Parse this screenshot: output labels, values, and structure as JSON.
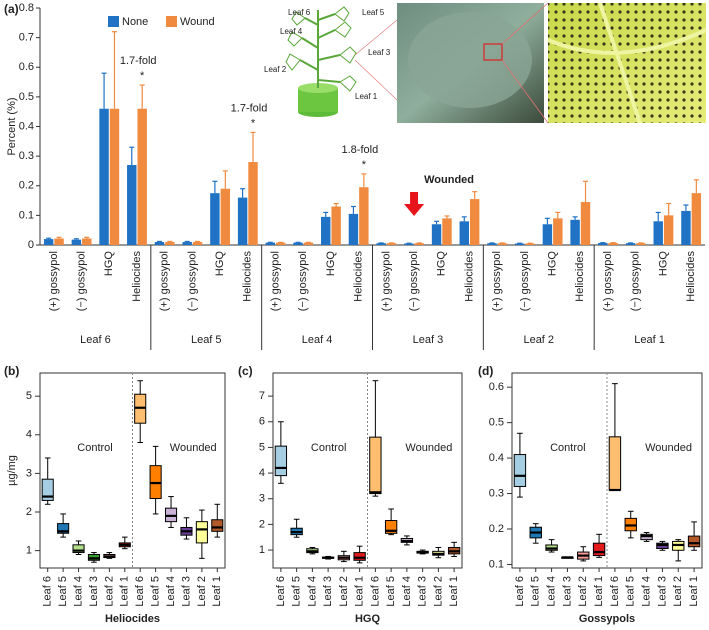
{
  "panel_labels": [
    "(a)",
    "(b)",
    "(c)",
    "(d)"
  ],
  "diagram": {
    "leaf_labels": [
      "Leaf 6",
      "Leaf 5",
      "Leaf 4",
      "Leaf 3",
      "Leaf 2",
      "Leaf 1"
    ]
  },
  "chart_data": [
    {
      "type": "bar",
      "ylabel": "Percent (%)",
      "categories": [
        "(+) gossypol",
        "(−) gossypol",
        "HGQ",
        "Heliocides",
        "(+) gossypol",
        "(−) gossypol",
        "HGQ",
        "Heliocides",
        "(+) gossypol",
        "(−) gossypol",
        "HGQ",
        "Heliocides",
        "(+) gossypol",
        "(−) gossypol",
        "HGQ",
        "Heliocides",
        "(+) gossypol",
        "(−) gossypol",
        "HGQ",
        "Heliocides",
        "(+) gossypol",
        "(−) gossypol",
        "HGQ",
        "Heliocides"
      ],
      "groups": [
        "Leaf 6",
        "Leaf 5",
        "Leaf 4",
        "Leaf 3",
        "Leaf 2",
        "Leaf 1"
      ],
      "series": [
        {
          "name": "None",
          "color": "#1f72c4",
          "values": [
            0.02,
            0.018,
            0.46,
            0.27,
            0.01,
            0.01,
            0.175,
            0.16,
            0.008,
            0.008,
            0.095,
            0.105,
            0.006,
            0.005,
            0.07,
            0.08,
            0.006,
            0.005,
            0.07,
            0.085,
            0.007,
            0.006,
            0.08,
            0.115
          ],
          "errors": [
            0.003,
            0.003,
            0.12,
            0.06,
            0.002,
            0.002,
            0.04,
            0.03,
            0.001,
            0.001,
            0.015,
            0.025,
            0.001,
            0.001,
            0.01,
            0.015,
            0.001,
            0.001,
            0.02,
            0.01,
            0.001,
            0.001,
            0.03,
            0.02
          ]
        },
        {
          "name": "Wound",
          "color": "#ef8a3f",
          "values": [
            0.022,
            0.022,
            0.46,
            0.46,
            0.01,
            0.01,
            0.19,
            0.28,
            0.008,
            0.008,
            0.13,
            0.195,
            0.006,
            0.006,
            0.09,
            0.155,
            0.006,
            0.005,
            0.09,
            0.145,
            0.007,
            0.006,
            0.1,
            0.175
          ],
          "errors": [
            0.004,
            0.004,
            0.26,
            0.08,
            0.002,
            0.002,
            0.06,
            0.1,
            0.001,
            0.001,
            0.01,
            0.045,
            0.001,
            0.001,
            0.008,
            0.025,
            0.001,
            0.001,
            0.02,
            0.07,
            0.001,
            0.001,
            0.04,
            0.045
          ]
        }
      ],
      "ylim": [
        0,
        0.8
      ],
      "yticks": [
        0,
        0.1,
        0.2,
        0.3,
        0.4,
        0.5,
        0.6,
        0.7,
        0.8
      ],
      "annotations": [
        "1.7-fold",
        "1.7-fold",
        "1.8-fold"
      ],
      "significance": "*",
      "wounded_label": "Wounded"
    },
    {
      "type": "boxplot",
      "xlabel": "Heliocides",
      "ylabel": "µg/mg",
      "categories": [
        "Leaf 6",
        "Leaf 5",
        "Leaf 4",
        "Leaf 3",
        "Leaf 2",
        "Leaf 1",
        "Leaf 6",
        "Leaf 5",
        "Leaf 4",
        "Leaf 3",
        "Leaf 2",
        "Leaf 1"
      ],
      "groups": [
        "Control",
        "Wounded"
      ],
      "colors": [
        "#a6cee3",
        "#1f78b4",
        "#b2df8a",
        "#33a02c",
        "#fb9a99",
        "#e31a1c",
        "#fdbf6f",
        "#ff7f00",
        "#cab2d6",
        "#6a3d9a",
        "#ffff99",
        "#b15928"
      ],
      "boxes": [
        {
          "min": 2.2,
          "q1": 2.3,
          "median": 2.4,
          "q3": 2.85,
          "max": 3.4
        },
        {
          "min": 1.35,
          "q1": 1.45,
          "median": 1.5,
          "q3": 1.7,
          "max": 1.95
        },
        {
          "min": 0.9,
          "q1": 0.95,
          "median": 1.0,
          "q3": 1.15,
          "max": 1.25
        },
        {
          "min": 0.7,
          "q1": 0.75,
          "median": 0.8,
          "q3": 0.9,
          "max": 0.95
        },
        {
          "min": 0.8,
          "q1": 0.82,
          "median": 0.85,
          "q3": 0.9,
          "max": 0.95
        },
        {
          "min": 1.05,
          "q1": 1.1,
          "median": 1.15,
          "q3": 1.2,
          "max": 1.35
        },
        {
          "min": 3.8,
          "q1": 4.3,
          "median": 4.7,
          "q3": 5.05,
          "max": 5.4
        },
        {
          "min": 1.95,
          "q1": 2.35,
          "median": 2.75,
          "q3": 3.2,
          "max": 3.7
        },
        {
          "min": 1.6,
          "q1": 1.75,
          "median": 1.9,
          "q3": 2.1,
          "max": 2.4
        },
        {
          "min": 1.3,
          "q1": 1.4,
          "median": 1.5,
          "q3": 1.6,
          "max": 1.85
        },
        {
          "min": 0.8,
          "q1": 1.2,
          "median": 1.55,
          "q3": 1.75,
          "max": 2.05
        },
        {
          "min": 1.35,
          "q1": 1.5,
          "median": 1.6,
          "q3": 1.8,
          "max": 2.2
        }
      ],
      "ylim": [
        0.55,
        5.6
      ],
      "yticks": [
        1,
        2,
        3,
        4,
        5
      ]
    },
    {
      "type": "boxplot",
      "xlabel": "HGQ",
      "categories": [
        "Leaf 6",
        "Leaf 5",
        "Leaf 4",
        "Leaf 3",
        "Leaf 2",
        "Leaf 1",
        "Leaf 6",
        "Leaf 5",
        "Leaf 4",
        "Leaf 3",
        "Leaf 2",
        "Leaf 1"
      ],
      "groups": [
        "Control",
        "Wounded"
      ],
      "colors": [
        "#a6cee3",
        "#1f78b4",
        "#b2df8a",
        "#33a02c",
        "#fb9a99",
        "#e31a1c",
        "#fdbf6f",
        "#ff7f00",
        "#cab2d6",
        "#6a3d9a",
        "#ffff99",
        "#b15928"
      ],
      "boxes": [
        {
          "min": 3.6,
          "q1": 3.9,
          "median": 4.2,
          "q3": 5.05,
          "max": 6.0
        },
        {
          "min": 1.5,
          "q1": 1.6,
          "median": 1.7,
          "q3": 1.85,
          "max": 2.2
        },
        {
          "min": 0.85,
          "q1": 0.9,
          "median": 0.95,
          "q3": 1.05,
          "max": 1.1
        },
        {
          "min": 0.65,
          "q1": 0.7,
          "median": 0.7,
          "q3": 0.72,
          "max": 0.75
        },
        {
          "min": 0.55,
          "q1": 0.62,
          "median": 0.7,
          "q3": 0.78,
          "max": 0.95
        },
        {
          "min": 0.5,
          "q1": 0.6,
          "median": 0.7,
          "q3": 0.9,
          "max": 1.15
        },
        {
          "min": 3.1,
          "q1": 3.2,
          "median": 3.25,
          "q3": 5.4,
          "max": 7.6
        },
        {
          "min": 1.6,
          "q1": 1.65,
          "median": 1.75,
          "q3": 2.15,
          "max": 2.6
        },
        {
          "min": 1.2,
          "q1": 1.3,
          "median": 1.35,
          "q3": 1.45,
          "max": 1.55
        },
        {
          "min": 0.85,
          "q1": 0.88,
          "median": 0.92,
          "q3": 0.95,
          "max": 1.0
        },
        {
          "min": 0.7,
          "q1": 0.8,
          "median": 0.85,
          "q3": 0.95,
          "max": 1.1
        },
        {
          "min": 0.75,
          "q1": 0.85,
          "median": 0.95,
          "q3": 1.1,
          "max": 1.3
        }
      ],
      "ylim": [
        0.3,
        7.9
      ],
      "yticks": [
        1,
        2,
        3,
        4,
        5,
        6,
        7
      ]
    },
    {
      "type": "boxplot",
      "xlabel": "Gossypols",
      "categories": [
        "Leaf 6",
        "Leaf 5",
        "Leaf 4",
        "Leaf 3",
        "Leaf 2",
        "Leaf 1",
        "Leaf 6",
        "Leaf 5",
        "Leaf 4",
        "Leaf 3",
        "Leaf 2",
        "Leaf 1"
      ],
      "groups": [
        "Control",
        "Wounded"
      ],
      "colors": [
        "#a6cee3",
        "#1f78b4",
        "#b2df8a",
        "#33a02c",
        "#fb9a99",
        "#e31a1c",
        "#fdbf6f",
        "#ff7f00",
        "#cab2d6",
        "#6a3d9a",
        "#ffff99",
        "#b15928"
      ],
      "boxes": [
        {
          "min": 0.29,
          "q1": 0.32,
          "median": 0.35,
          "q3": 0.41,
          "max": 0.47
        },
        {
          "min": 0.16,
          "q1": 0.175,
          "median": 0.19,
          "q3": 0.205,
          "max": 0.215
        },
        {
          "min": 0.135,
          "q1": 0.14,
          "median": 0.145,
          "q3": 0.155,
          "max": 0.17
        },
        {
          "min": 0.12,
          "q1": 0.12,
          "median": 0.12,
          "q3": 0.12,
          "max": 0.12
        },
        {
          "min": 0.11,
          "q1": 0.115,
          "median": 0.125,
          "q3": 0.135,
          "max": 0.15
        },
        {
          "min": 0.12,
          "q1": 0.125,
          "median": 0.135,
          "q3": 0.16,
          "max": 0.185
        },
        {
          "min": 0.31,
          "q1": 0.31,
          "median": 0.31,
          "q3": 0.46,
          "max": 0.61
        },
        {
          "min": 0.175,
          "q1": 0.195,
          "median": 0.21,
          "q3": 0.23,
          "max": 0.25
        },
        {
          "min": 0.165,
          "q1": 0.17,
          "median": 0.18,
          "q3": 0.185,
          "max": 0.19
        },
        {
          "min": 0.14,
          "q1": 0.145,
          "median": 0.155,
          "q3": 0.16,
          "max": 0.165
        },
        {
          "min": 0.11,
          "q1": 0.14,
          "median": 0.155,
          "q3": 0.165,
          "max": 0.17
        },
        {
          "min": 0.14,
          "q1": 0.15,
          "median": 0.16,
          "q3": 0.18,
          "max": 0.22
        }
      ],
      "ylim": [
        0.09,
        0.64
      ],
      "yticks": [
        0.1,
        0.2,
        0.3,
        0.4,
        0.5,
        0.6
      ]
    }
  ]
}
